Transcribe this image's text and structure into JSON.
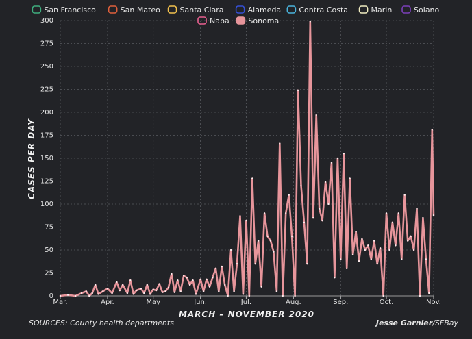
{
  "footer": {
    "sources": "SOURCES: County health departments",
    "author": "Jesse Garnier",
    "outlet": "/SFBay"
  },
  "chart_data": {
    "type": "line",
    "title": "",
    "xlabel": "MARCH – NOVEMBER 2020",
    "ylabel": "CASES PER DAY",
    "ylim": [
      0,
      300
    ],
    "yticks": [
      0,
      25,
      50,
      75,
      100,
      125,
      150,
      175,
      200,
      225,
      250,
      275,
      300
    ],
    "grid": true,
    "legend_position": "top",
    "x_start": "2020-03-01",
    "x_end": "2020-11-01",
    "xticks": [
      {
        "date": "2020-03-01",
        "label": "Mar."
      },
      {
        "date": "2020-04-01",
        "label": "Apr."
      },
      {
        "date": "2020-05-01",
        "label": "May"
      },
      {
        "date": "2020-06-01",
        "label": "Jun."
      },
      {
        "date": "2020-07-01",
        "label": "Jul."
      },
      {
        "date": "2020-08-01",
        "label": "Aug."
      },
      {
        "date": "2020-09-01",
        "label": "Sep."
      },
      {
        "date": "2020-10-01",
        "label": "Oct."
      },
      {
        "date": "2020-11-01",
        "label": "Nov."
      }
    ],
    "legend": [
      {
        "name": "San Francisco",
        "color": "#3fae7f",
        "filled": false
      },
      {
        "name": "San Mateo",
        "color": "#e0603c",
        "filled": false
      },
      {
        "name": "Santa Clara",
        "color": "#f2c14e",
        "filled": false
      },
      {
        "name": "Alameda",
        "color": "#3550d6",
        "filled": false
      },
      {
        "name": "Contra Costa",
        "color": "#4ab3dc",
        "filled": false
      },
      {
        "name": "Marin",
        "color": "#f0ecc0",
        "filled": false
      },
      {
        "name": "Solano",
        "color": "#7a3fb8",
        "filled": false
      },
      {
        "name": "Napa",
        "color": "#e85f8f",
        "filled": false
      },
      {
        "name": "Sonoma",
        "color": "#e7959b",
        "filled": true
      }
    ],
    "series": [
      {
        "name": "Sonoma",
        "color": "#e7959b",
        "points": [
          [
            "2020-03-01",
            0
          ],
          [
            "2020-03-06",
            1
          ],
          [
            "2020-03-11",
            0
          ],
          [
            "2020-03-15",
            3
          ],
          [
            "2020-03-18",
            5
          ],
          [
            "2020-03-20",
            0
          ],
          [
            "2020-03-22",
            3
          ],
          [
            "2020-03-24",
            12
          ],
          [
            "2020-03-26",
            2
          ],
          [
            "2020-03-29",
            5
          ],
          [
            "2020-04-01",
            8
          ],
          [
            "2020-04-04",
            3
          ],
          [
            "2020-04-07",
            15
          ],
          [
            "2020-04-09",
            6
          ],
          [
            "2020-04-11",
            12
          ],
          [
            "2020-04-14",
            3
          ],
          [
            "2020-04-16",
            17
          ],
          [
            "2020-04-18",
            2
          ],
          [
            "2020-04-20",
            6
          ],
          [
            "2020-04-23",
            8
          ],
          [
            "2020-04-25",
            3
          ],
          [
            "2020-04-27",
            12
          ],
          [
            "2020-04-29",
            2
          ],
          [
            "2020-05-01",
            7
          ],
          [
            "2020-05-03",
            6
          ],
          [
            "2020-05-05",
            13
          ],
          [
            "2020-05-07",
            4
          ],
          [
            "2020-05-09",
            5
          ],
          [
            "2020-05-11",
            9
          ],
          [
            "2020-05-13",
            24
          ],
          [
            "2020-05-15",
            4
          ],
          [
            "2020-05-17",
            17
          ],
          [
            "2020-05-19",
            5
          ],
          [
            "2020-05-21",
            22
          ],
          [
            "2020-05-23",
            20
          ],
          [
            "2020-05-25",
            12
          ],
          [
            "2020-05-27",
            17
          ],
          [
            "2020-05-29",
            2
          ],
          [
            "2020-06-01",
            18
          ],
          [
            "2020-06-03",
            5
          ],
          [
            "2020-06-05",
            18
          ],
          [
            "2020-06-07",
            10
          ],
          [
            "2020-06-09",
            20
          ],
          [
            "2020-06-11",
            30
          ],
          [
            "2020-06-13",
            5
          ],
          [
            "2020-06-15",
            32
          ],
          [
            "2020-06-17",
            12
          ],
          [
            "2020-06-19",
            0
          ],
          [
            "2020-06-21",
            50
          ],
          [
            "2020-06-23",
            5
          ],
          [
            "2020-06-25",
            35
          ],
          [
            "2020-06-27",
            87
          ],
          [
            "2020-06-29",
            2
          ],
          [
            "2020-07-01",
            82
          ],
          [
            "2020-07-03",
            0
          ],
          [
            "2020-07-05",
            128
          ],
          [
            "2020-07-07",
            35
          ],
          [
            "2020-07-09",
            60
          ],
          [
            "2020-07-11",
            10
          ],
          [
            "2020-07-13",
            90
          ],
          [
            "2020-07-15",
            65
          ],
          [
            "2020-07-17",
            60
          ],
          [
            "2020-07-19",
            48
          ],
          [
            "2020-07-21",
            5
          ],
          [
            "2020-07-23",
            166
          ],
          [
            "2020-07-25",
            0
          ],
          [
            "2020-07-27",
            90
          ],
          [
            "2020-07-29",
            110
          ],
          [
            "2020-07-31",
            65
          ],
          [
            "2020-08-02",
            0
          ],
          [
            "2020-08-04",
            224
          ],
          [
            "2020-08-06",
            120
          ],
          [
            "2020-08-08",
            80
          ],
          [
            "2020-08-10",
            35
          ],
          [
            "2020-08-12",
            299
          ],
          [
            "2020-08-14",
            85
          ],
          [
            "2020-08-16",
            197
          ],
          [
            "2020-08-18",
            95
          ],
          [
            "2020-08-20",
            82
          ],
          [
            "2020-08-22",
            124
          ],
          [
            "2020-08-24",
            100
          ],
          [
            "2020-08-26",
            145
          ],
          [
            "2020-08-28",
            20
          ],
          [
            "2020-08-30",
            150
          ],
          [
            "2020-09-01",
            40
          ],
          [
            "2020-09-03",
            155
          ],
          [
            "2020-09-05",
            30
          ],
          [
            "2020-09-07",
            128
          ],
          [
            "2020-09-09",
            45
          ],
          [
            "2020-09-11",
            70
          ],
          [
            "2020-09-13",
            38
          ],
          [
            "2020-09-15",
            62
          ],
          [
            "2020-09-17",
            50
          ],
          [
            "2020-09-19",
            55
          ],
          [
            "2020-09-21",
            40
          ],
          [
            "2020-09-23",
            60
          ],
          [
            "2020-09-25",
            35
          ],
          [
            "2020-09-27",
            52
          ],
          [
            "2020-09-29",
            0
          ],
          [
            "2020-10-01",
            90
          ],
          [
            "2020-10-03",
            50
          ],
          [
            "2020-10-05",
            80
          ],
          [
            "2020-10-07",
            55
          ],
          [
            "2020-10-09",
            90
          ],
          [
            "2020-10-11",
            40
          ],
          [
            "2020-10-13",
            110
          ],
          [
            "2020-10-15",
            60
          ],
          [
            "2020-10-17",
            65
          ],
          [
            "2020-10-19",
            50
          ],
          [
            "2020-10-21",
            95
          ],
          [
            "2020-10-23",
            0
          ],
          [
            "2020-10-25",
            85
          ],
          [
            "2020-10-27",
            40
          ],
          [
            "2020-10-29",
            3
          ],
          [
            "2020-10-31",
            181
          ],
          [
            "2020-11-01",
            88
          ]
        ]
      }
    ]
  }
}
